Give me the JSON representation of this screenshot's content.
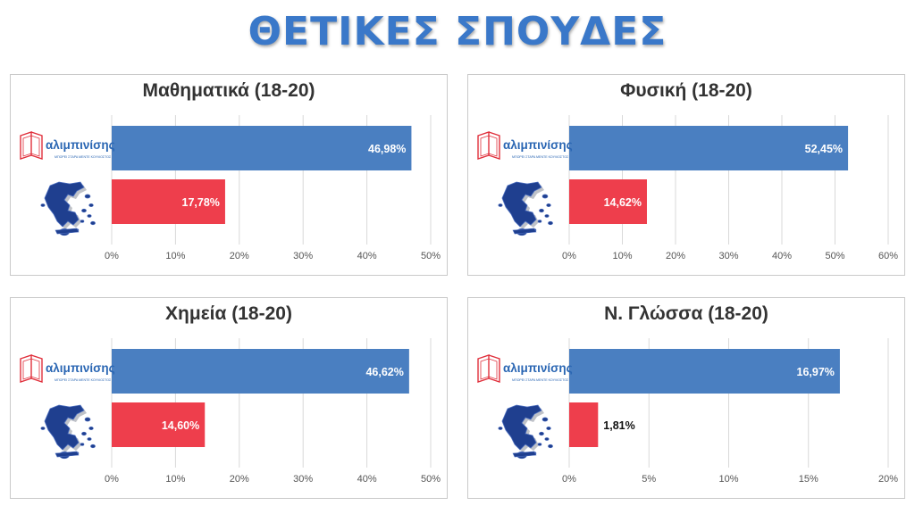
{
  "page": {
    "title": "ΘΕΤΙΚΕΣ ΣΠΟΥΔΕΣ"
  },
  "logo": {
    "name": "αλιμπινίσης",
    "tagline": "ΜΠΟΡΕΙ ΣΤΑΡΑ ΜΕΝΤΕ ΚΟΥΛΙΟΣΤΟΣ"
  },
  "colors": {
    "school": "#4a7fc1",
    "national": "#ee3e4c",
    "title": "#3a78c9",
    "logo_red": "#e0303c",
    "logo_blue": "#2a66b3"
  },
  "chart_data": [
    {
      "type": "bar",
      "title": "Μαθηματικά (18-20)",
      "categories": [
        "αλιμπινίσης",
        "Ελλάδα"
      ],
      "values": [
        46.98,
        17.78
      ],
      "value_labels": [
        "46,98%",
        "17,78%"
      ],
      "xlim": [
        0,
        50
      ],
      "ticks": [
        "0%",
        "10%",
        "20%",
        "30%",
        "40%",
        "50%"
      ],
      "grid": true
    },
    {
      "type": "bar",
      "title": "Φυσική (18-20)",
      "categories": [
        "αλιμπινίσης",
        "Ελλάδα"
      ],
      "values": [
        52.45,
        14.62
      ],
      "value_labels": [
        "52,45%",
        "14,62%"
      ],
      "xlim": [
        0,
        60
      ],
      "ticks": [
        "0%",
        "10%",
        "20%",
        "30%",
        "40%",
        "50%",
        "60%"
      ],
      "grid": true
    },
    {
      "type": "bar",
      "title": "Χημεία (18-20)",
      "categories": [
        "αλιμπινίσης",
        "Ελλάδα"
      ],
      "values": [
        46.62,
        14.6
      ],
      "value_labels": [
        "46,62%",
        "14,60%"
      ],
      "xlim": [
        0,
        50
      ],
      "ticks": [
        "0%",
        "10%",
        "20%",
        "30%",
        "40%",
        "50%"
      ],
      "grid": true
    },
    {
      "type": "bar",
      "title": "Ν. Γλώσσα (18-20)",
      "categories": [
        "αλιμπινίσης",
        "Ελλάδα"
      ],
      "values": [
        16.97,
        1.81
      ],
      "value_labels": [
        "16,97%",
        "1,81%"
      ],
      "xlim": [
        0,
        20
      ],
      "ticks": [
        "0%",
        "5%",
        "10%",
        "15%",
        "20%"
      ],
      "grid": true
    }
  ]
}
